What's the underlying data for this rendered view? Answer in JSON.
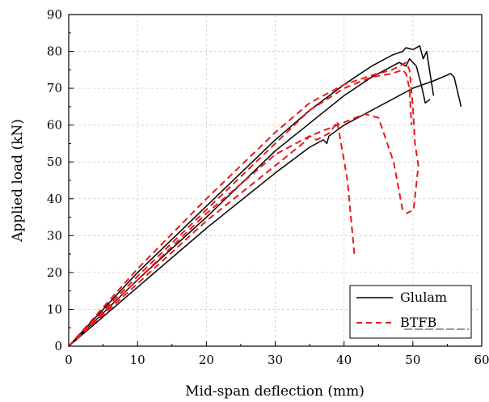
{
  "chart_data": {
    "type": "line",
    "title": "",
    "xlabel": "Mid-span deflection (mm)",
    "ylabel": "Applied load (kN)",
    "xlim": [
      0,
      60
    ],
    "ylim": [
      0,
      90
    ],
    "xticks": [
      0,
      10,
      20,
      30,
      40,
      50,
      60
    ],
    "yticks": [
      0,
      10,
      20,
      30,
      40,
      50,
      60,
      70,
      80,
      90
    ],
    "xtick_labels": [
      "0",
      "10",
      "20",
      "30",
      "40",
      "50",
      "60"
    ],
    "ytick_labels": [
      "0",
      "10",
      "20",
      "30",
      "40",
      "50",
      "60",
      "70",
      "80",
      "90"
    ],
    "grid": true,
    "legend_position": "bottom-right",
    "legend": [
      {
        "label": "Glulam",
        "color": "#000000",
        "style": "solid"
      },
      {
        "label": "BTFB",
        "color": "#e8191b",
        "style": "dashed"
      }
    ],
    "series": [
      {
        "group": "Glulam",
        "color": "#000000",
        "style": "solid",
        "points": [
          [
            0,
            0
          ],
          [
            10,
            18
          ],
          [
            20,
            35
          ],
          [
            30,
            53
          ],
          [
            36,
            62
          ],
          [
            40,
            68
          ],
          [
            44,
            73
          ],
          [
            47,
            76
          ],
          [
            48,
            77
          ],
          [
            49,
            76
          ],
          [
            49.5,
            78
          ],
          [
            50.5,
            76
          ],
          [
            51.2,
            71
          ],
          [
            51.8,
            66
          ],
          [
            52.5,
            67
          ]
        ]
      },
      {
        "group": "Glulam",
        "color": "#000000",
        "style": "solid",
        "points": [
          [
            0,
            0
          ],
          [
            10,
            20
          ],
          [
            20,
            38
          ],
          [
            30,
            56
          ],
          [
            35,
            64
          ],
          [
            40,
            71
          ],
          [
            44,
            76
          ],
          [
            47,
            79
          ],
          [
            48.5,
            80
          ],
          [
            49,
            81
          ],
          [
            50,
            80.5
          ],
          [
            51,
            81.5
          ],
          [
            51.5,
            78
          ],
          [
            52,
            80
          ],
          [
            52.5,
            74
          ],
          [
            53,
            68
          ]
        ]
      },
      {
        "group": "Glulam",
        "color": "#000000",
        "style": "solid",
        "points": [
          [
            0,
            0
          ],
          [
            10,
            16
          ],
          [
            20,
            32
          ],
          [
            30,
            47
          ],
          [
            35,
            54
          ],
          [
            37,
            56
          ],
          [
            37.5,
            55
          ],
          [
            37.8,
            57
          ],
          [
            40,
            60
          ],
          [
            45,
            65
          ],
          [
            50,
            70
          ],
          [
            53,
            72
          ],
          [
            55.5,
            74
          ],
          [
            56,
            73
          ],
          [
            57,
            65
          ]
        ]
      },
      {
        "group": "BTFB",
        "color": "#e8191b",
        "style": "dashed",
        "points": [
          [
            0,
            0
          ],
          [
            10,
            19
          ],
          [
            20,
            37
          ],
          [
            30,
            55
          ],
          [
            35,
            64
          ],
          [
            40,
            70
          ],
          [
            44,
            73
          ],
          [
            47,
            74
          ],
          [
            48.5,
            75
          ],
          [
            49,
            74
          ],
          [
            49.5,
            70
          ],
          [
            49.8,
            60
          ]
        ]
      },
      {
        "group": "BTFB",
        "color": "#e8191b",
        "style": "dashed",
        "points": [
          [
            0,
            0
          ],
          [
            10,
            21
          ],
          [
            20,
            40
          ],
          [
            30,
            58
          ],
          [
            35,
            66
          ],
          [
            40,
            71
          ],
          [
            44,
            73.5
          ],
          [
            47,
            75
          ],
          [
            48,
            76
          ],
          [
            49,
            77
          ],
          [
            49.5,
            75
          ],
          [
            50,
            65
          ],
          [
            50.3,
            55
          ],
          [
            50.8,
            49
          ],
          [
            50.1,
            37
          ],
          [
            49,
            36
          ]
        ]
      },
      {
        "group": "BTFB",
        "color": "#e8191b",
        "style": "dashed",
        "points": [
          [
            0,
            0
          ],
          [
            10,
            17
          ],
          [
            20,
            34
          ],
          [
            30,
            49
          ],
          [
            34,
            55
          ],
          [
            35,
            57
          ],
          [
            36,
            56
          ],
          [
            38,
            58
          ],
          [
            39,
            61
          ],
          [
            40.5,
            45
          ],
          [
            41.5,
            25
          ]
        ]
      },
      {
        "group": "BTFB",
        "color": "#e8191b",
        "style": "dashed",
        "points": [
          [
            0,
            0
          ],
          [
            10,
            18
          ],
          [
            20,
            36
          ],
          [
            30,
            52
          ],
          [
            35,
            57
          ],
          [
            39,
            60
          ],
          [
            43,
            63
          ],
          [
            45,
            62
          ],
          [
            47.2,
            50
          ],
          [
            48.5,
            37
          ]
        ]
      }
    ]
  }
}
